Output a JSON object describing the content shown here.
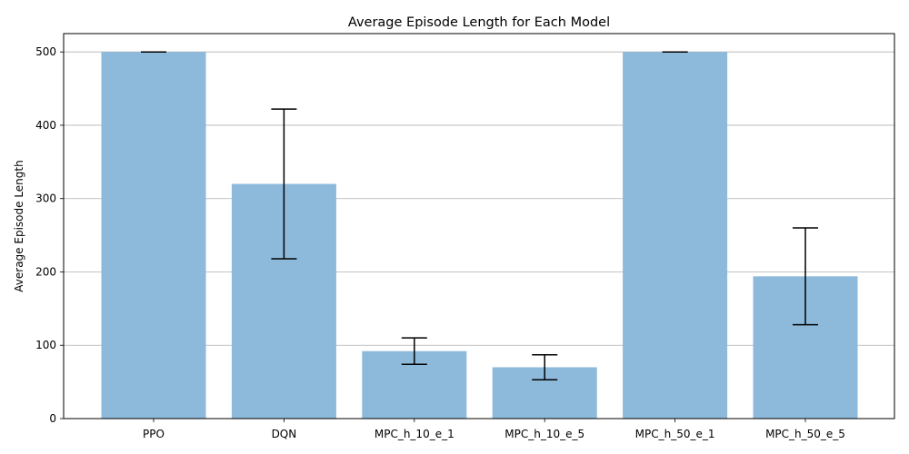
{
  "chart_data": {
    "type": "bar",
    "title": "Average Episode Length for Each Model",
    "xlabel": "",
    "ylabel": "Average Episode Length",
    "categories": [
      "PPO",
      "DQN",
      "MPC_h_10_e_1",
      "MPC_h_10_e_5",
      "MPC_h_50_e_1",
      "MPC_h_50_e_5"
    ],
    "values": [
      500,
      320,
      92,
      70,
      500,
      194
    ],
    "errors": [
      0,
      102,
      18,
      17,
      0,
      66
    ],
    "ylim": [
      0,
      525
    ],
    "yticks": [
      0,
      100,
      200,
      300,
      400,
      500
    ],
    "grid": "y",
    "bar_color": "#8db9da",
    "error_color": "#000000"
  }
}
